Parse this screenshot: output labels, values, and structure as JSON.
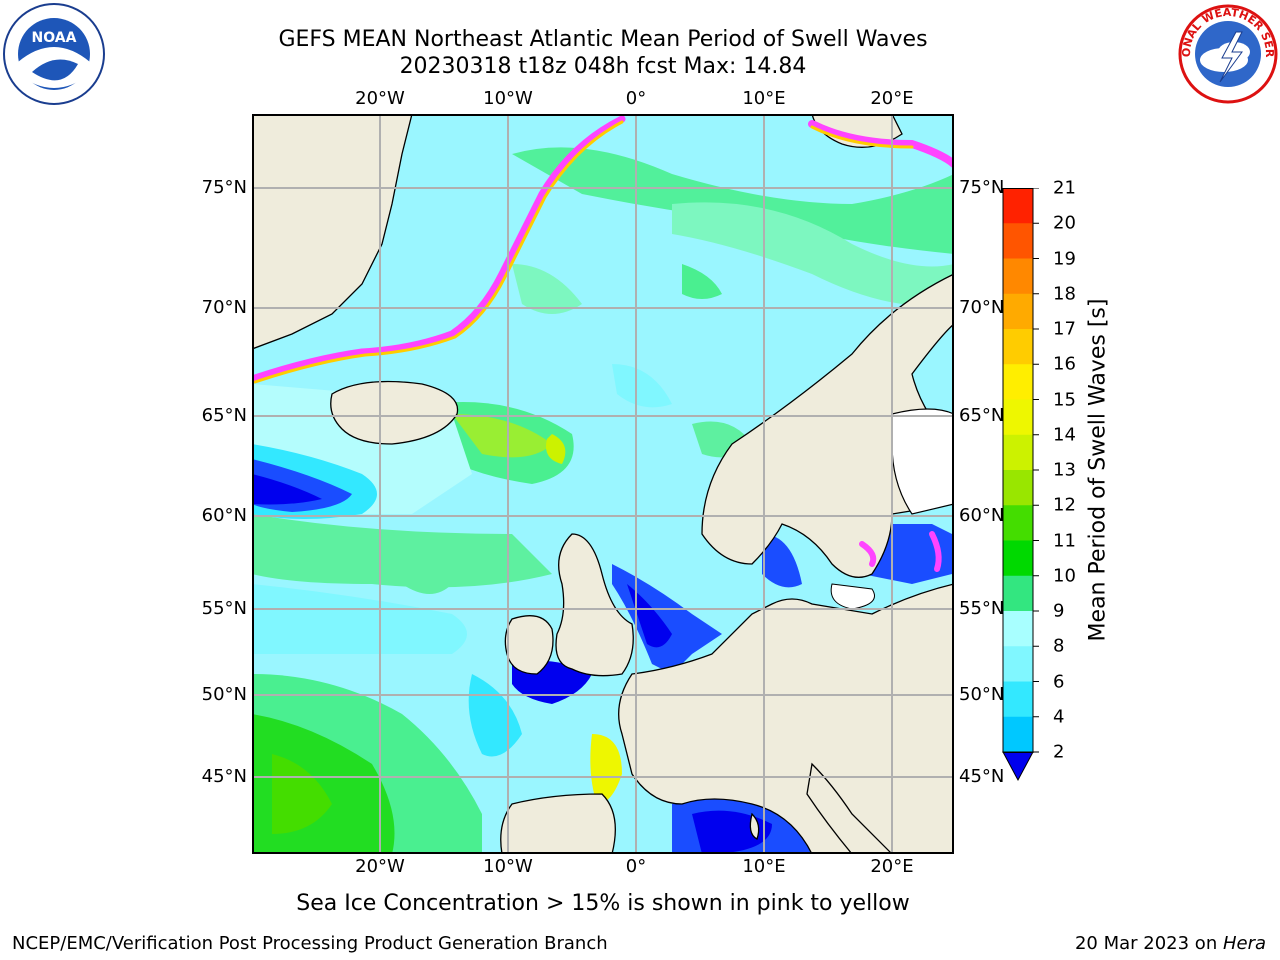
{
  "title": {
    "line1": "GEFS MEAN Northeast Atlantic Mean Period of Swell Waves",
    "line2": "20230318 t18z 048h fcst   Max: 14.84"
  },
  "logos": {
    "left": {
      "icon": "noaa-logo",
      "text": "NOAA"
    },
    "right": {
      "icon": "nws-logo",
      "text": "NATIONAL WEATHER SERVICE"
    }
  },
  "map": {
    "lon_ticks": [
      "20°W",
      "10°W",
      "0°",
      "10°E",
      "20°E"
    ],
    "lat_ticks": [
      "75°N",
      "70°N",
      "65°N",
      "60°N",
      "55°N",
      "50°N",
      "45°N"
    ],
    "colors": {
      "land": "#efecdc",
      "ice": "#ff44ff",
      "grid": "#b0b0b0"
    }
  },
  "colorbar": {
    "label": "Mean Period of Swell Waves [s]",
    "ticks": [
      "2",
      "4",
      "6",
      "8",
      "9",
      "10",
      "11",
      "12",
      "13",
      "14",
      "15",
      "16",
      "17",
      "18",
      "19",
      "20",
      "21"
    ],
    "colors": [
      "#0026ff",
      "#00c8ff",
      "#33e8ff",
      "#80f7ff",
      "#a8ffff",
      "#33e680",
      "#00d900",
      "#44dd00",
      "#99e600",
      "#ccf200",
      "#eef700",
      "#ffee00",
      "#ffcc00",
      "#ffaa00",
      "#ff8800",
      "#ff5500",
      "#ff2200",
      "#ff0000"
    ],
    "under_color": "#0000ee"
  },
  "caption": "Sea Ice Concentration > 15% is shown in pink to yellow",
  "footer": {
    "left": "NCEP/EMC/Verification Post Processing Product Generation Branch",
    "right_date": "20 Mar 2023 on ",
    "right_host": "Hera"
  }
}
